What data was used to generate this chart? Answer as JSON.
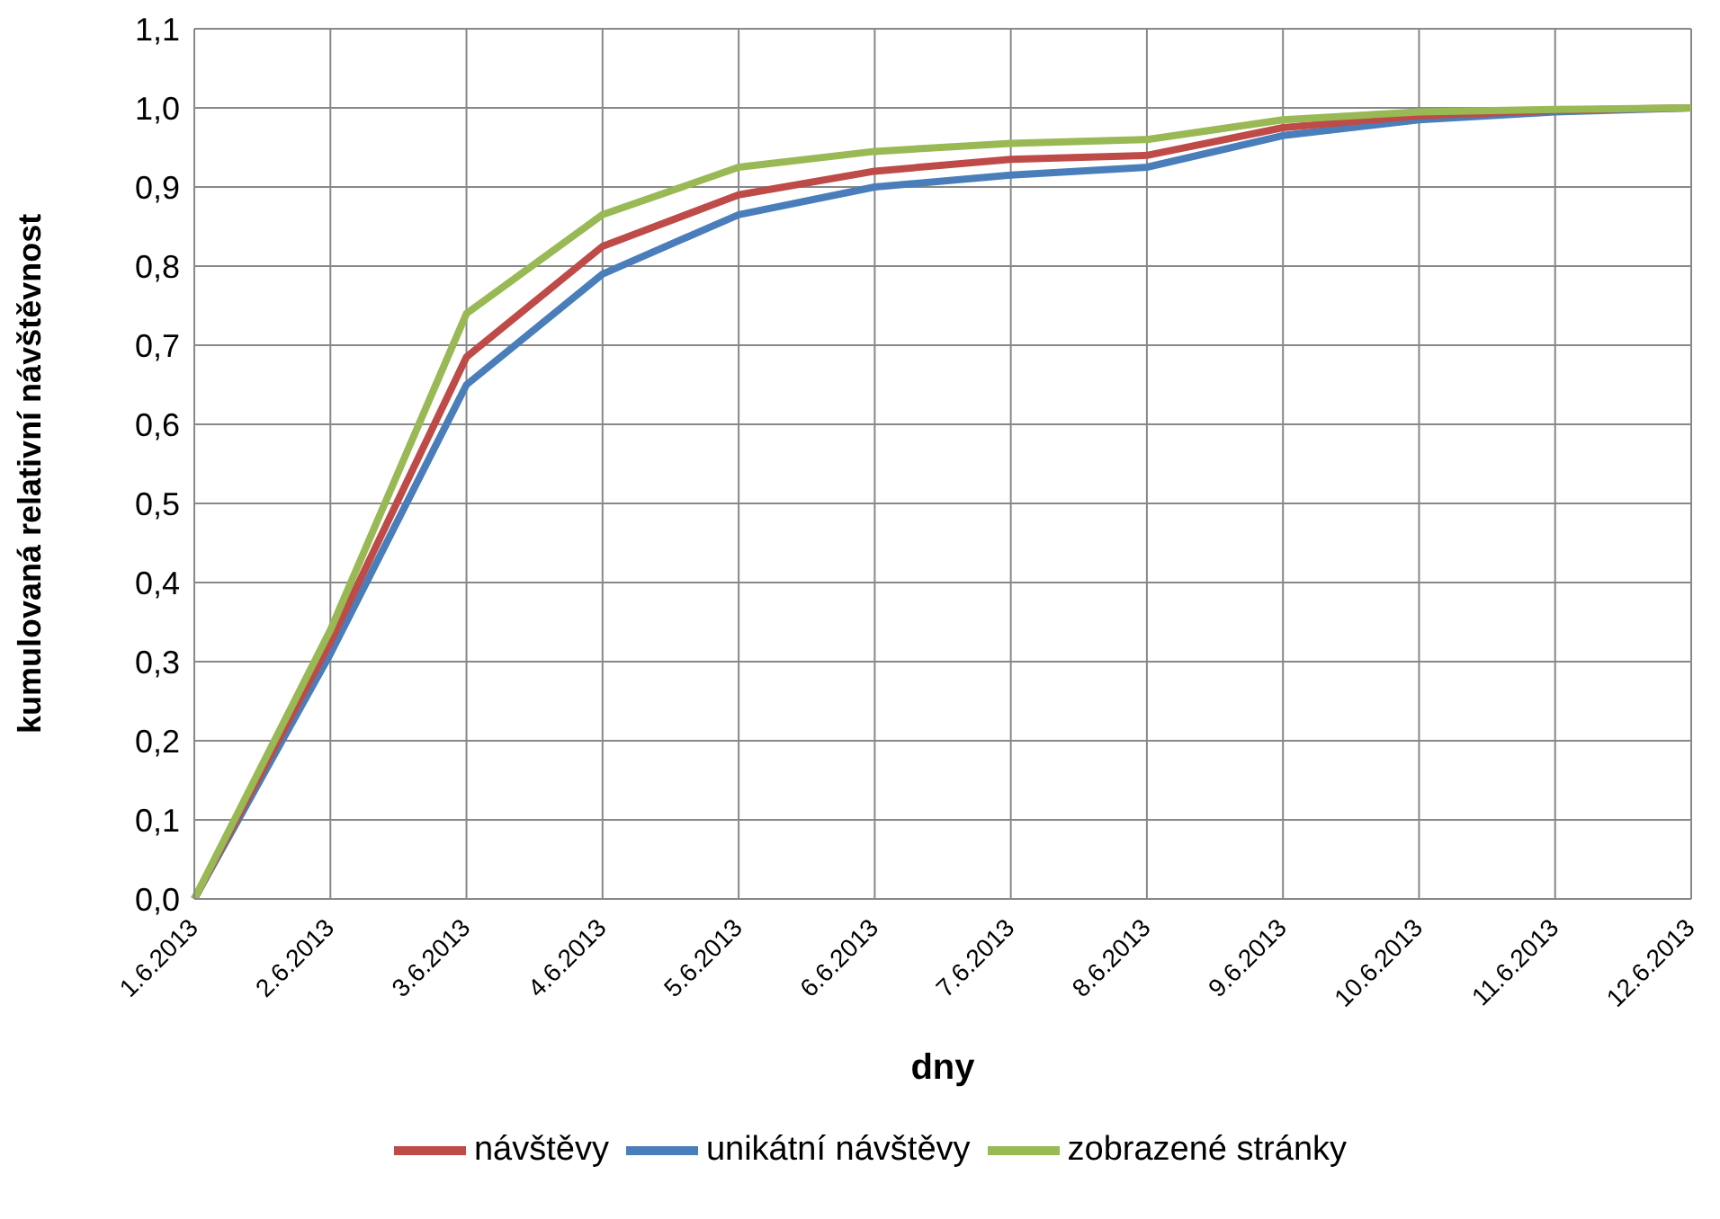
{
  "chart_data": {
    "type": "line",
    "xlabel": "dny",
    "ylabel": "kumulovaná relativní návštěvnost",
    "categories": [
      "1.6.2013",
      "2.6.2013",
      "3.6.2013",
      "4.6.2013",
      "5.6.2013",
      "6.6.2013",
      "7.6.2013",
      "8.6.2013",
      "9.6.2013",
      "10.6.2013",
      "11.6.2013",
      "12.6.2013"
    ],
    "series": [
      {
        "name": "unikátní návštěvy",
        "color": "#4a7ebb",
        "values": [
          0,
          0.31,
          0.65,
          0.79,
          0.865,
          0.9,
          0.915,
          0.925,
          0.965,
          0.985,
          0.995,
          1
        ]
      },
      {
        "name": "návštěvy",
        "color": "#be4b48",
        "values": [
          0,
          0.325,
          0.685,
          0.825,
          0.89,
          0.92,
          0.935,
          0.94,
          0.975,
          0.99,
          0.997,
          1
        ]
      },
      {
        "name": "zobrazené stránky",
        "color": "#98b954",
        "values": [
          0,
          0.34,
          0.74,
          0.865,
          0.925,
          0.945,
          0.955,
          0.96,
          0.985,
          0.995,
          0.998,
          1
        ]
      }
    ],
    "ylim": [
      0,
      1.1
    ],
    "yticks": [
      {
        "value": 0,
        "label": "0,0"
      },
      {
        "value": 0.1,
        "label": "0,1"
      },
      {
        "value": 0.2,
        "label": "0,2"
      },
      {
        "value": 0.3,
        "label": "0,3"
      },
      {
        "value": 0.4,
        "label": "0,4"
      },
      {
        "value": 0.5,
        "label": "0,5"
      },
      {
        "value": 0.6,
        "label": "0,6"
      },
      {
        "value": 0.7,
        "label": "0,7"
      },
      {
        "value": 0.8,
        "label": "0,8"
      },
      {
        "value": 0.9,
        "label": "0,9"
      },
      {
        "value": 1,
        "label": "1,0"
      },
      {
        "value": 1.1,
        "label": "1,1"
      }
    ],
    "grid": true,
    "legend": "bottom",
    "marker": "none",
    "line_style": "solid"
  }
}
